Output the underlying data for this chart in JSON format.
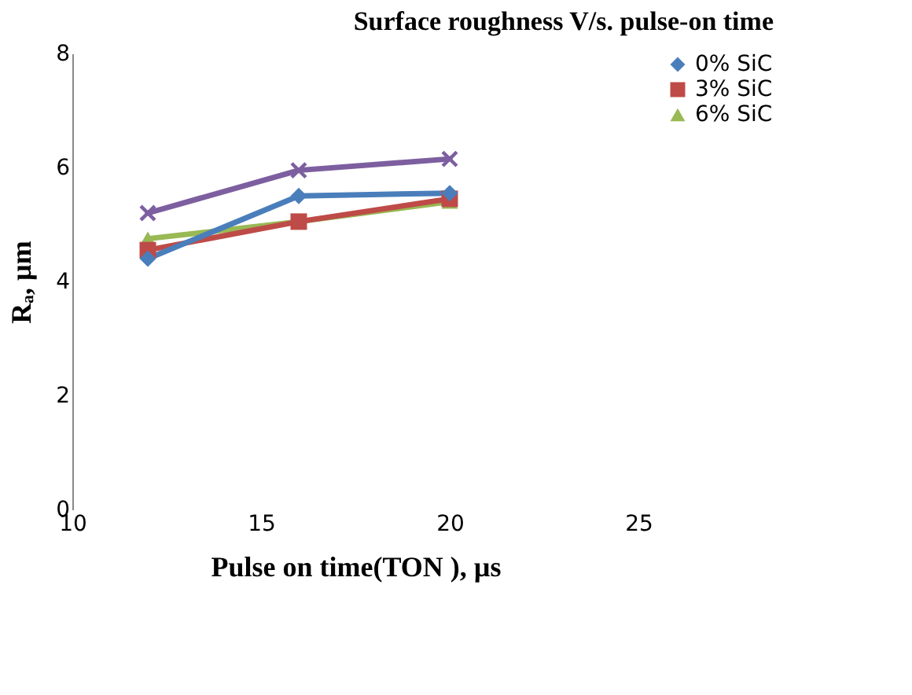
{
  "chart_data": {
    "type": "line",
    "title": "Surface roughness V/s. pulse-on time",
    "xlabel": "Pulse on time(TON ), µs",
    "ylabel": "Rₐ, µm",
    "x": [
      12,
      16,
      20
    ],
    "series": [
      {
        "name": "0% SiC",
        "color": "#4a7ebb",
        "marker": "diamond",
        "values": [
          4.4,
          5.5,
          5.55
        ]
      },
      {
        "name": "3% SiC",
        "color": "#be4b48",
        "marker": "square",
        "values": [
          4.55,
          5.05,
          5.45
        ]
      },
      {
        "name": "6% SiC",
        "color": "#98b954",
        "marker": "triangle",
        "values": [
          4.75,
          5.05,
          5.4
        ]
      },
      {
        "color": "#7d5fa0",
        "marker": "cross",
        "values": [
          5.2,
          5.95,
          6.15
        ]
      }
    ],
    "xlim": [
      10,
      25
    ],
    "xticks": [
      10,
      15,
      20,
      25
    ],
    "ylim": [
      0,
      8
    ],
    "yticks": [
      0,
      2,
      4,
      6,
      8
    ],
    "grid": false,
    "legend": "right",
    "line_style": "solid"
  }
}
